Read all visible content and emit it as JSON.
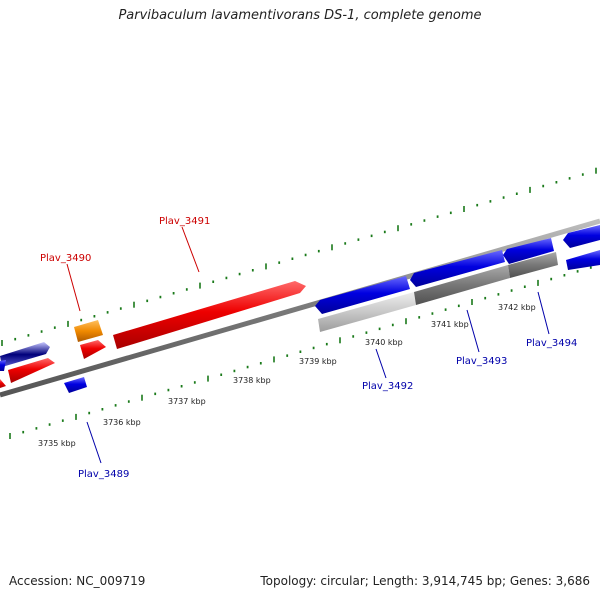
{
  "title": "Parvibaculum lavamentivorans DS-1, complete genome",
  "footer": {
    "accession": "Accession: NC_009719",
    "topology": "Topology: circular; Length: 3,914,745 bp; Genes: 3,686"
  },
  "colors": {
    "forward_gene": "#ee0000",
    "reverse_gene": "#0000dd",
    "rna_gene": "#f08a00",
    "pseudogene": "#808080",
    "backbone": "#8a8a8a",
    "tick": "#1a7a1a",
    "forward_label": "#cc0000",
    "reverse_label": "#0000aa"
  },
  "scale_labels": [
    "3735 kbp",
    "3736 kbp",
    "3737 kbp",
    "3738 kbp",
    "3739 kbp",
    "3740 kbp",
    "3741 kbp",
    "3742 kbp"
  ],
  "gene_labels": {
    "forward": [
      "Plav_3490",
      "Plav_3491"
    ],
    "reverse": [
      "Plav_3489",
      "Plav_3492",
      "Plav_3493",
      "Plav_3494"
    ]
  }
}
